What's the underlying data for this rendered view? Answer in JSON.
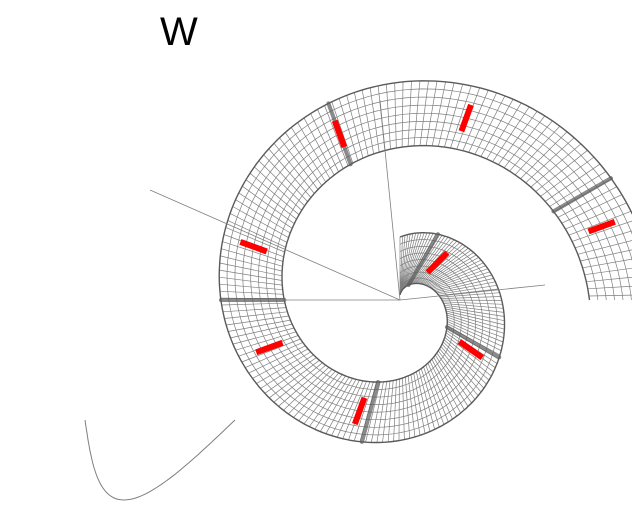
{
  "label": "W",
  "colors": {
    "mesh": "#7f7f7f",
    "mesh_dark": "#5a5a5a",
    "marker": "#ff0000",
    "background": "#ffffff"
  }
}
